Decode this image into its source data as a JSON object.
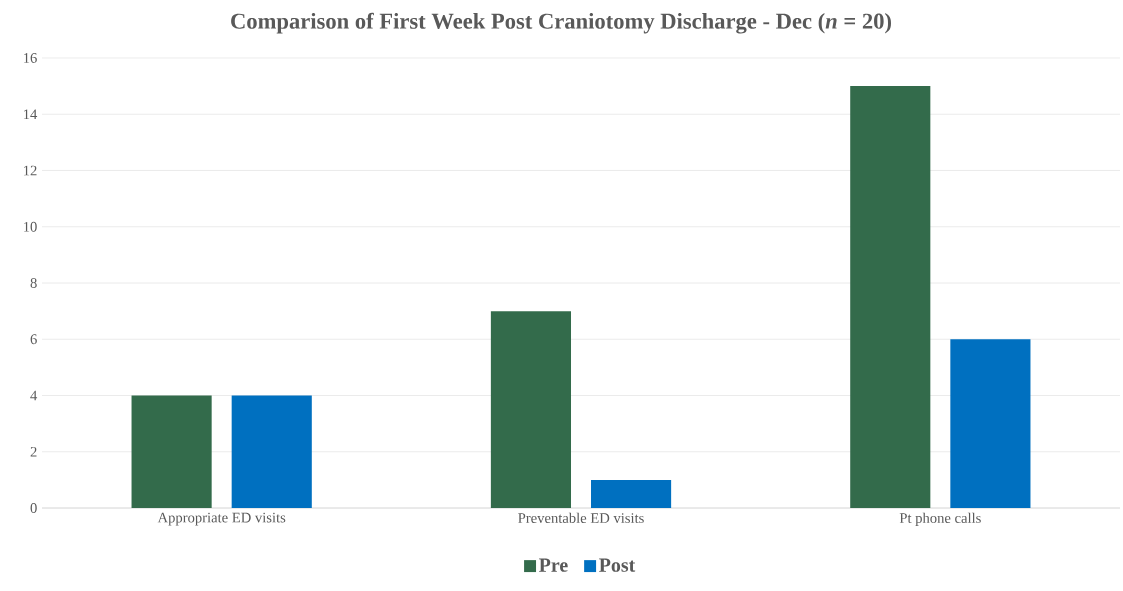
{
  "chart_data": {
    "type": "bar",
    "title": "Comparison of First Week Post Craniotomy Discharge - Dec (*n* = 20)",
    "categories": [
      "Appropriate ED visits",
      "Preventable ED visits",
      "Pt phone calls"
    ],
    "series": [
      {
        "name": "Pre",
        "color": "#336b4b",
        "values": [
          4,
          7,
          15
        ]
      },
      {
        "name": "Post",
        "color": "#0070c0",
        "values": [
          4,
          1,
          6
        ]
      }
    ],
    "ylim": [
      0,
      16
    ],
    "yticks": [
      0,
      2,
      4,
      6,
      8,
      10,
      12,
      14,
      16
    ],
    "grid": "y",
    "legend": "bottom"
  }
}
